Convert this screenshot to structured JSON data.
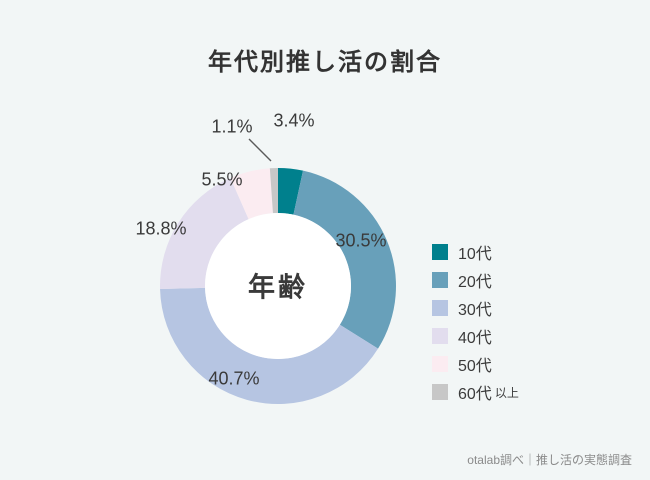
{
  "chart_data": {
    "type": "donut",
    "title": "年代別推し活の割合",
    "center_label": "年齢",
    "categories": [
      "10代",
      "20代",
      "30代",
      "40代",
      "50代",
      "60代以上"
    ],
    "values": [
      3.4,
      30.5,
      40.7,
      18.8,
      5.5,
      1.1
    ],
    "labels": [
      "3.4%",
      "30.5%",
      "40.7%",
      "18.8%",
      "5.5%",
      "1.1%"
    ],
    "colors": [
      "#00808d",
      "#68a0ba",
      "#b6c5e2",
      "#e2ddee",
      "#fbecf1",
      "#c7c7c7"
    ],
    "unit": "%",
    "start_angle_deg": 0,
    "direction": "clockwise",
    "legend_position": "right",
    "hole_color": "#ffffff",
    "background": "#f2f6f6"
  },
  "legend": {
    "items": [
      {
        "label": "10代",
        "suffix": ""
      },
      {
        "label": "20代",
        "suffix": ""
      },
      {
        "label": "30代",
        "suffix": ""
      },
      {
        "label": "40代",
        "suffix": ""
      },
      {
        "label": "50代",
        "suffix": ""
      },
      {
        "label": "60代",
        "suffix": "以上"
      }
    ]
  },
  "footer": {
    "credit": "otalab調べ｜推し活の実態調査"
  }
}
